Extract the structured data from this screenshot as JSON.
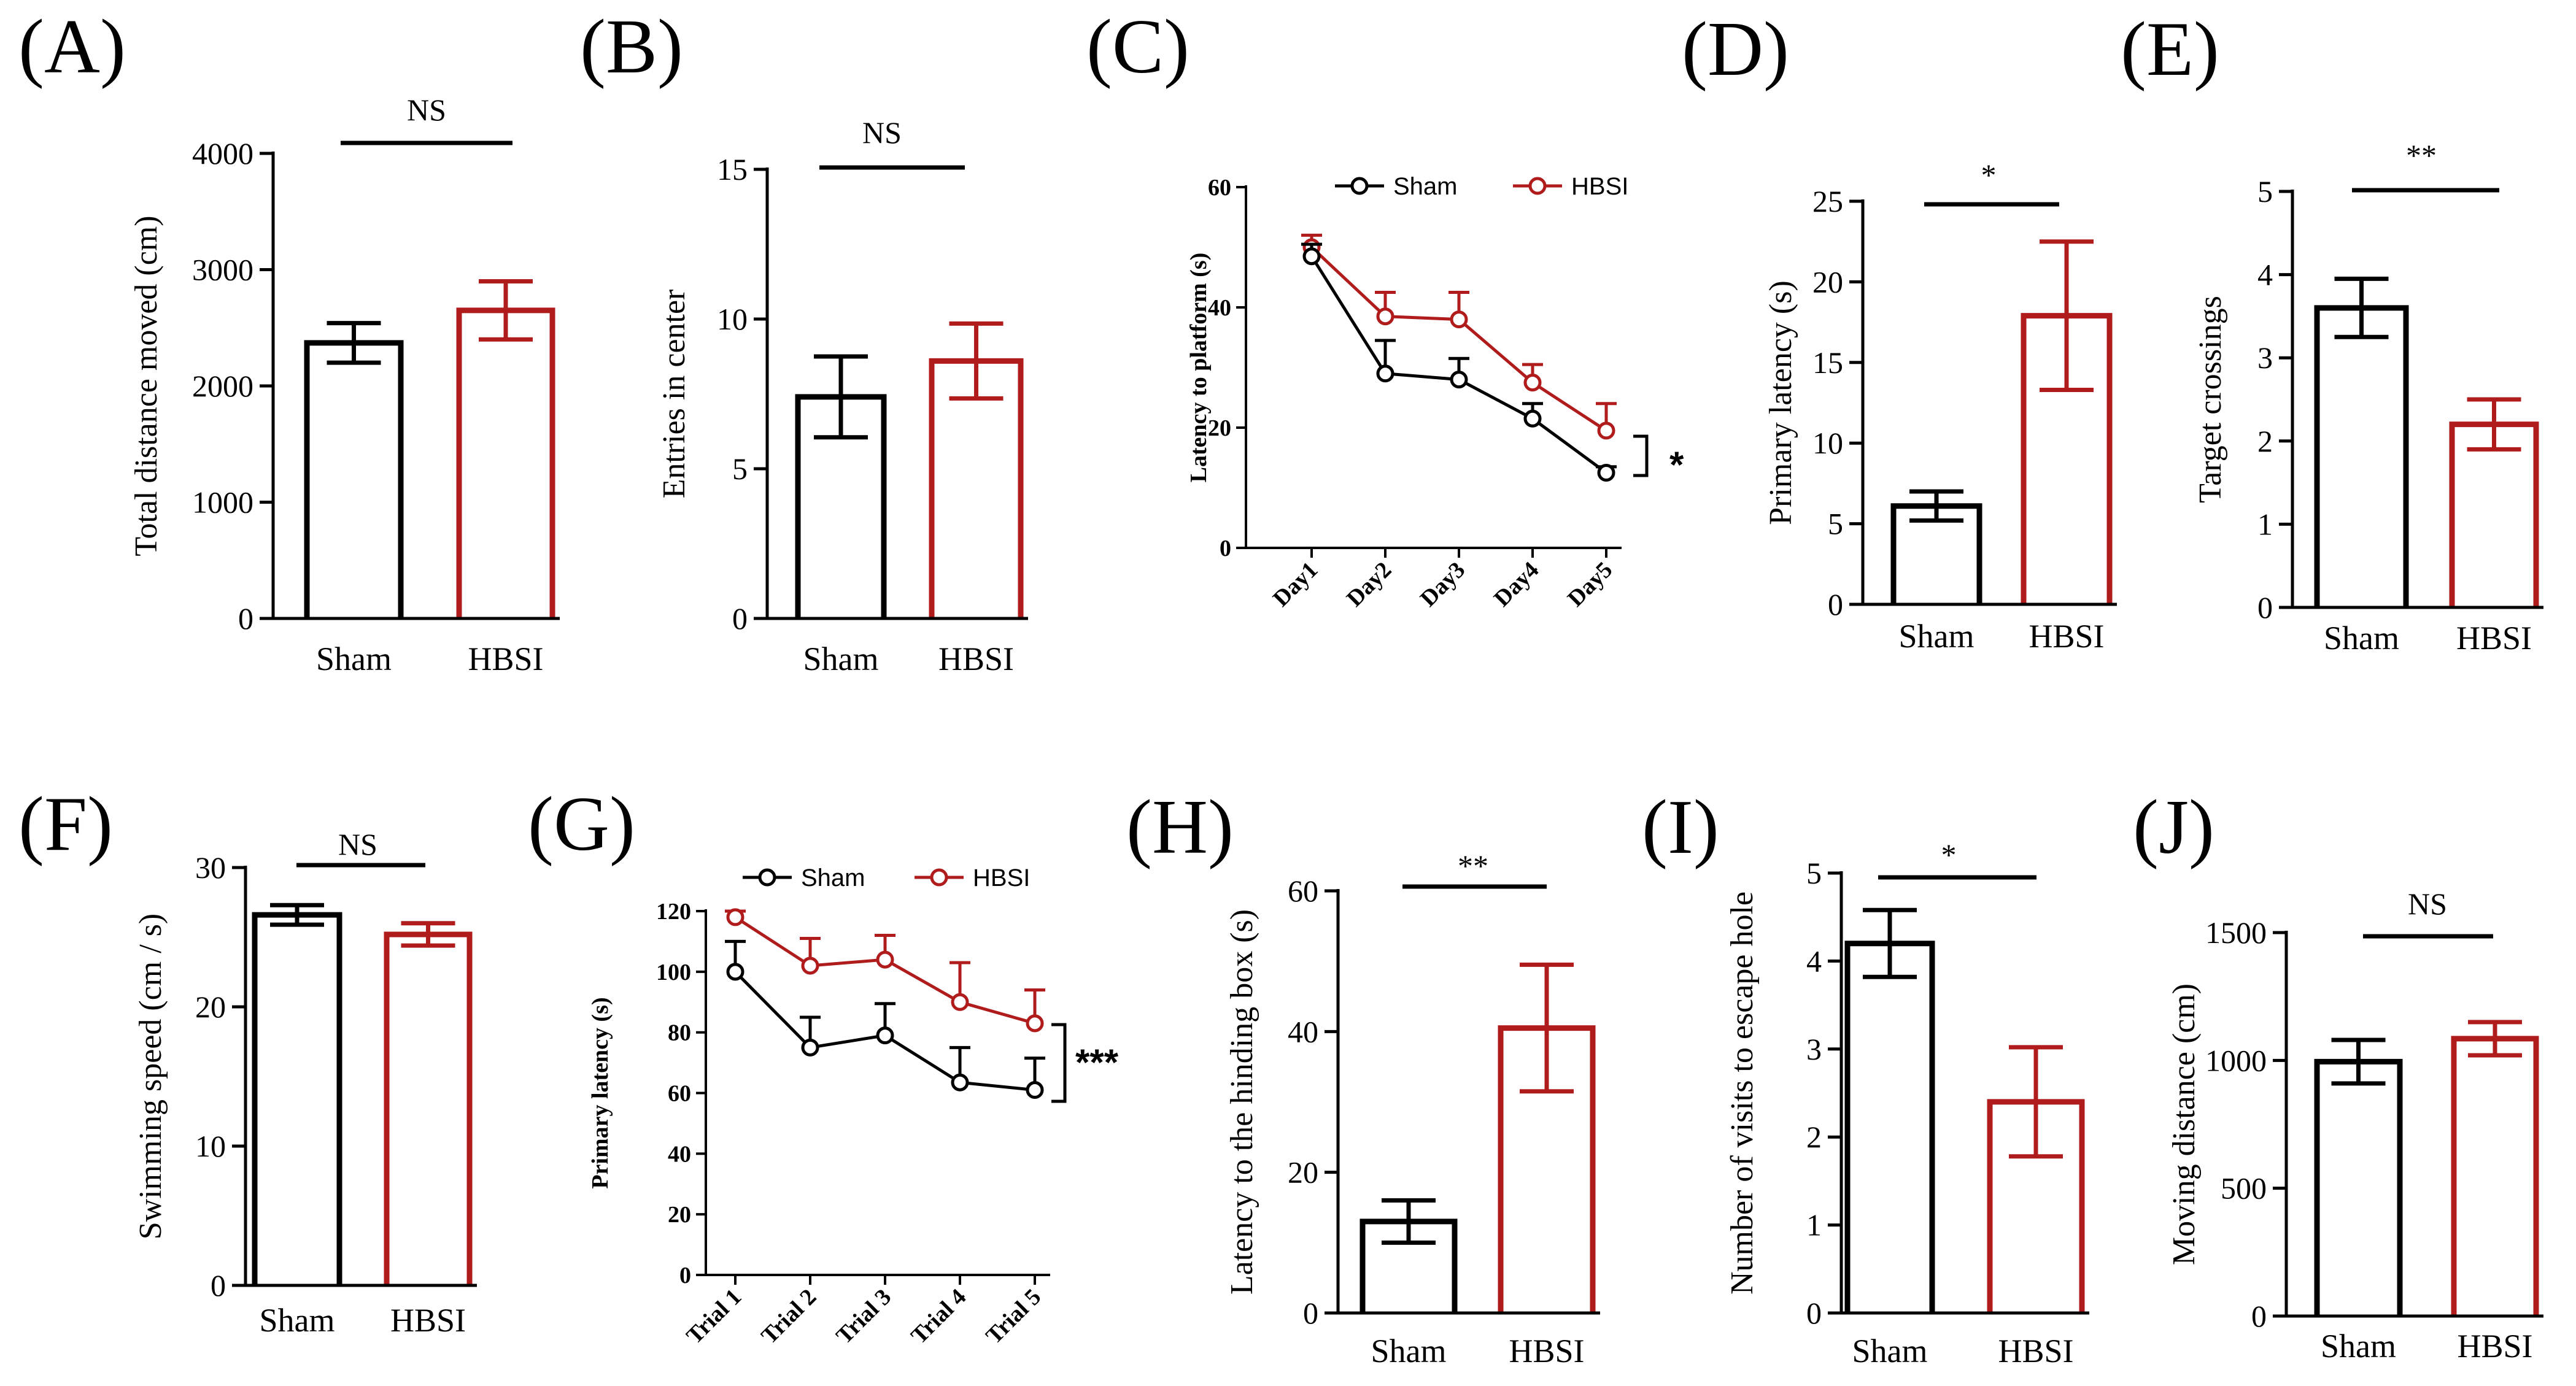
{
  "colors": {
    "sham": "#000000",
    "hbsi": "#b01c1c"
  },
  "chart_data": [
    {
      "id": "A",
      "type": "bar",
      "letter": "(A)",
      "ylabel": "Total distance moved (cm)",
      "ylim": [
        0,
        4000
      ],
      "yticks": [
        0,
        1000,
        2000,
        3000,
        4000
      ],
      "categories": [
        "Sham",
        "HBSI"
      ],
      "values": [
        2370,
        2650
      ],
      "errors": [
        170,
        250
      ],
      "significance": "NS"
    },
    {
      "id": "B",
      "type": "bar",
      "letter": "(B)",
      "ylabel": "Entries in center",
      "ylim": [
        0,
        15
      ],
      "yticks": [
        0,
        5,
        10,
        15
      ],
      "categories": [
        "Sham",
        "HBSI"
      ],
      "values": [
        7.4,
        8.6
      ],
      "errors": [
        1.35,
        1.25
      ],
      "significance": "NS"
    },
    {
      "id": "C",
      "type": "line",
      "letter": "(C)",
      "ylabel": "Latency to platform (s)",
      "ylim": [
        0,
        60
      ],
      "yticks": [
        0,
        20,
        40,
        60
      ],
      "categories": [
        "Day1",
        "Day2",
        "Day3",
        "Day4",
        "Day5"
      ],
      "series": [
        {
          "name": "Sham",
          "values": [
            48.5,
            29,
            28,
            21.5,
            12.5
          ],
          "errors": [
            2,
            5.5,
            3.5,
            2.5,
            1
          ]
        },
        {
          "name": "HBSI",
          "values": [
            50,
            38.5,
            38,
            27.5,
            19.5
          ],
          "errors": [
            2,
            4,
            4.5,
            3,
            4.5
          ]
        }
      ],
      "significance": "*"
    },
    {
      "id": "D",
      "type": "bar",
      "letter": "(D)",
      "ylabel": "Primary latency (s)",
      "ylim": [
        0,
        25
      ],
      "yticks": [
        0,
        5,
        10,
        15,
        20,
        25
      ],
      "categories": [
        "Sham",
        "HBSI"
      ],
      "values": [
        6.1,
        17.9
      ],
      "errors": [
        0.9,
        4.6
      ],
      "significance": "*"
    },
    {
      "id": "E",
      "type": "bar",
      "letter": "(E)",
      "ylabel": "Target crossings",
      "ylim": [
        0,
        5
      ],
      "yticks": [
        0,
        1,
        2,
        3,
        4,
        5
      ],
      "categories": [
        "Sham",
        "HBSI"
      ],
      "values": [
        3.6,
        2.2
      ],
      "errors": [
        0.35,
        0.3
      ],
      "significance": "**"
    },
    {
      "id": "F",
      "type": "bar",
      "letter": "(F)",
      "ylabel": "Swimming speed (cm / s)",
      "ylim": [
        0,
        30
      ],
      "yticks": [
        0,
        10,
        20,
        30
      ],
      "categories": [
        "Sham",
        "HBSI"
      ],
      "values": [
        26.6,
        25.2
      ],
      "errors": [
        0.7,
        0.8
      ],
      "significance": "NS"
    },
    {
      "id": "G",
      "type": "line",
      "letter": "(G)",
      "ylabel": "Primary latency (s)",
      "ylim": [
        0,
        120
      ],
      "yticks": [
        0,
        20,
        40,
        60,
        80,
        100,
        120
      ],
      "categories": [
        "Trial 1",
        "Trial 2",
        "Trial 3",
        "Trial 4",
        "Trial 5"
      ],
      "series": [
        {
          "name": "Sham",
          "values": [
            100,
            75,
            79,
            63.5,
            61
          ],
          "errors": [
            10,
            10,
            10.5,
            11.5,
            10.5
          ]
        },
        {
          "name": "HBSI",
          "values": [
            118,
            102,
            104,
            90,
            83
          ],
          "errors": [
            2,
            9,
            8,
            13,
            11
          ]
        }
      ],
      "significance": "***"
    },
    {
      "id": "H",
      "type": "bar",
      "letter": "(H)",
      "ylabel": "Latency to the hinding box (s)",
      "ylim": [
        0,
        60
      ],
      "yticks": [
        0,
        20,
        40,
        60
      ],
      "categories": [
        "Sham",
        "HBSI"
      ],
      "values": [
        13,
        40.5
      ],
      "errors": [
        3,
        9
      ],
      "significance": "**"
    },
    {
      "id": "I",
      "type": "bar",
      "letter": "(I)",
      "ylabel": "Number of visits to escape hole",
      "ylim": [
        0,
        5
      ],
      "yticks": [
        0,
        1,
        2,
        3,
        4,
        5
      ],
      "categories": [
        "Sham",
        "HBSI"
      ],
      "values": [
        4.2,
        2.4
      ],
      "errors": [
        0.38,
        0.62
      ],
      "significance": "*"
    },
    {
      "id": "J",
      "type": "bar",
      "letter": "(J)",
      "ylabel": "Moving distance (cm)",
      "ylim": [
        0,
        1500
      ],
      "yticks": [
        0,
        500,
        1000,
        1500
      ],
      "categories": [
        "Sham",
        "HBSI"
      ],
      "values": [
        995,
        1085
      ],
      "errors": [
        85,
        65
      ],
      "significance": "NS"
    }
  ]
}
